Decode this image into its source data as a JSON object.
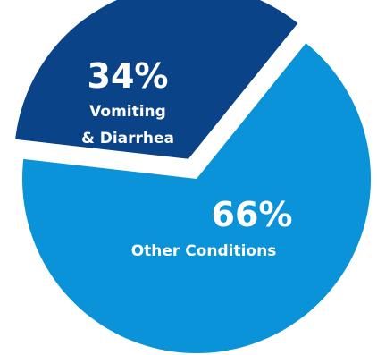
{
  "chart_data": {
    "type": "pie",
    "slices": [
      {
        "label_lines": [
          "Vomiting",
          "& Diarrhea"
        ],
        "value": 34,
        "value_label": "34%",
        "color": "#0b4388",
        "exploded": true
      },
      {
        "label_lines": [
          "Other Conditions"
        ],
        "value": 66,
        "value_label": "66%",
        "color": "#0a93d9",
        "exploded": false
      }
    ]
  }
}
